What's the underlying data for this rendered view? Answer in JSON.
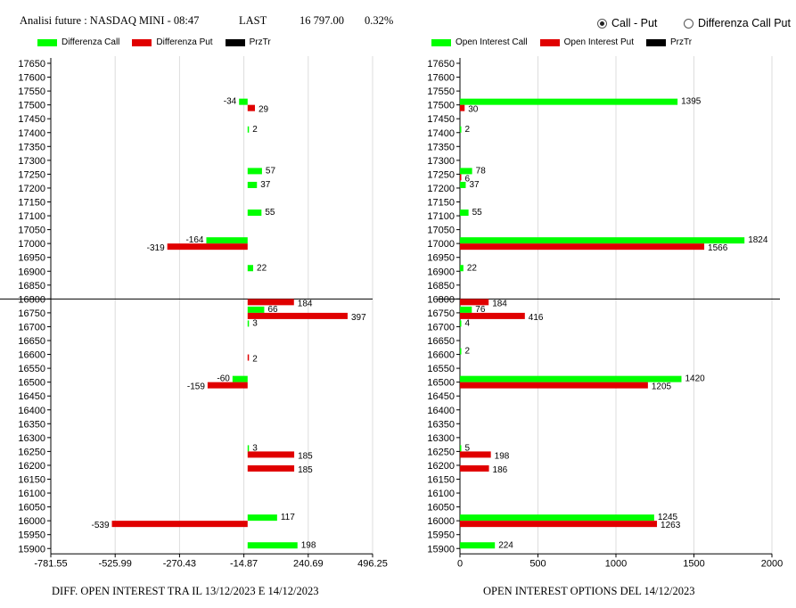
{
  "header": {
    "title": "Analisi future : NASDAQ MINI - 08:47",
    "last_label": "LAST",
    "last_value": "16 797.00",
    "change": "0.32%"
  },
  "mode": {
    "options": [
      "Call - Put",
      "Differenza Call Put"
    ],
    "selected": "Call - Put"
  },
  "colors": {
    "call": "#00ff00",
    "put": "#e00000",
    "price": "#000000"
  },
  "chart_data": [
    {
      "type": "bar",
      "orientation": "horizontal",
      "caption": "DIFF. OPEN INTEREST TRA IL 13/12/2023 E 14/12/2023",
      "series": [
        {
          "name": "Differenza Call",
          "color": "#00ff00"
        },
        {
          "name": "Differenza Put",
          "color": "#e00000"
        },
        {
          "name": "PrzTr",
          "color": "#000000"
        }
      ],
      "strikes": [
        17650,
        17600,
        17550,
        17500,
        17450,
        17400,
        17350,
        17300,
        17250,
        17200,
        17150,
        17100,
        17050,
        17000,
        16950,
        16900,
        16850,
        16800,
        16750,
        16700,
        16650,
        16600,
        16550,
        16500,
        16450,
        16400,
        16350,
        16300,
        16250,
        16200,
        16150,
        16100,
        16050,
        16000,
        15950,
        15900
      ],
      "xlim": [
        -781.55,
        496.25
      ],
      "xticks": [
        "-781.55",
        "-525.99",
        "-270.43",
        "-14.87",
        "240.69",
        "496.25"
      ],
      "price_line": 16800,
      "values": [
        {
          "strike": 17500,
          "call": -34,
          "put": 29
        },
        {
          "strike": 17400,
          "call": 2,
          "put": null
        },
        {
          "strike": 17250,
          "call": 57,
          "put": null
        },
        {
          "strike": 17200,
          "call": 37,
          "put": null
        },
        {
          "strike": 17100,
          "call": 55,
          "put": null
        },
        {
          "strike": 17000,
          "call": -164,
          "put": -319
        },
        {
          "strike": 16900,
          "call": 22,
          "put": null
        },
        {
          "strike": 16800,
          "call": null,
          "put": 184
        },
        {
          "strike": 16750,
          "call": 66,
          "put": 397
        },
        {
          "strike": 16700,
          "call": 3,
          "put": null
        },
        {
          "strike": 16600,
          "call": null,
          "put": 2
        },
        {
          "strike": 16500,
          "call": -60,
          "put": -159
        },
        {
          "strike": 16250,
          "call": 3,
          "put": 185
        },
        {
          "strike": 16200,
          "call": null,
          "put": 185
        },
        {
          "strike": 16000,
          "call": 117,
          "put": -539
        },
        {
          "strike": 15900,
          "call": 198,
          "put": null
        }
      ]
    },
    {
      "type": "bar",
      "orientation": "horizontal",
      "caption": "OPEN INTEREST OPTIONS DEL 14/12/2023",
      "series": [
        {
          "name": "Open Interest Call",
          "color": "#00ff00"
        },
        {
          "name": "Open Interest Put",
          "color": "#e00000"
        },
        {
          "name": "PrzTr",
          "color": "#000000"
        }
      ],
      "strikes": [
        17650,
        17600,
        17550,
        17500,
        17450,
        17400,
        17350,
        17300,
        17250,
        17200,
        17150,
        17100,
        17050,
        17000,
        16950,
        16900,
        16850,
        16800,
        16750,
        16700,
        16650,
        16600,
        16550,
        16500,
        16450,
        16400,
        16350,
        16300,
        16250,
        16200,
        16150,
        16100,
        16050,
        16000,
        15950,
        15900
      ],
      "xlim": [
        0,
        2000
      ],
      "xticks": [
        "0",
        "500",
        "1000",
        "1500",
        "2000"
      ],
      "price_line": 16800,
      "values": [
        {
          "strike": 17500,
          "call": 1395,
          "put": 30
        },
        {
          "strike": 17400,
          "call": 2,
          "put": null
        },
        {
          "strike": 17250,
          "call": 78,
          "put": 6
        },
        {
          "strike": 17200,
          "call": 37,
          "put": null
        },
        {
          "strike": 17100,
          "call": 55,
          "put": null
        },
        {
          "strike": 17000,
          "call": 1824,
          "put": 1566
        },
        {
          "strike": 16900,
          "call": 22,
          "put": null
        },
        {
          "strike": 16800,
          "call": null,
          "put": 184
        },
        {
          "strike": 16750,
          "call": 76,
          "put": 416
        },
        {
          "strike": 16700,
          "call": 4,
          "put": null
        },
        {
          "strike": 16600,
          "call": 2,
          "put": null
        },
        {
          "strike": 16500,
          "call": 1420,
          "put": 1205
        },
        {
          "strike": 16250,
          "call": 5,
          "put": 198
        },
        {
          "strike": 16200,
          "call": null,
          "put": 186
        },
        {
          "strike": 16000,
          "call": 1245,
          "put": 1263
        },
        {
          "strike": 15900,
          "call": 224,
          "put": null
        }
      ]
    }
  ]
}
